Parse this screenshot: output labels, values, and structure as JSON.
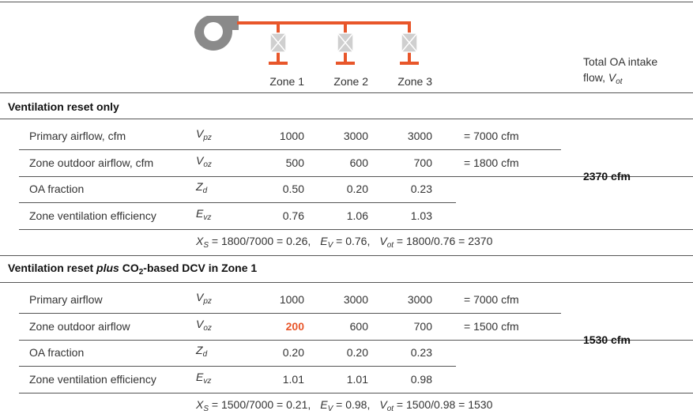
{
  "header": {
    "zones": [
      "Zone 1",
      "Zone 2",
      "Zone 3"
    ],
    "total_label": {
      "line1": "Total OA intake",
      "line2": "flow, ",
      "sym": {
        "base": "V",
        "sub": "ot"
      }
    }
  },
  "highlight_color": "#e8562a",
  "sections": [
    {
      "title": [
        {
          "text": "Ventilation reset only"
        }
      ],
      "rows": [
        {
          "label": "Primary airflow, cfm",
          "sym": {
            "base": "V",
            "sub": "pz"
          },
          "values": [
            "1000",
            "3000",
            "3000"
          ],
          "sum": "= 7000 cfm"
        },
        {
          "label": "Zone outdoor airflow, cfm",
          "sym": {
            "base": "V",
            "sub": "oz"
          },
          "values": [
            "500",
            "600",
            "700"
          ],
          "sum": "= 1800 cfm"
        },
        {
          "label": "OA fraction",
          "sym": {
            "base": "Z",
            "sub": "d"
          },
          "values": [
            "0.50",
            "0.20",
            "0.23"
          ]
        },
        {
          "label": "Zone ventilation efficiency",
          "sym": {
            "base": "E",
            "sub": "vz"
          },
          "values": [
            "0.76",
            "1.06",
            "1.03"
          ]
        }
      ],
      "total": "2370 cfm",
      "formula": [
        {
          "sym": {
            "base": "X",
            "sub": "S"
          },
          "expr": " = 1800/7000 = 0.26,"
        },
        {
          "sym": {
            "base": "E",
            "sub": "V"
          },
          "expr": " = 0.76,"
        },
        {
          "sym": {
            "base": "V",
            "sub": "ot"
          },
          "expr": " = 1800/0.76 = 2370"
        }
      ]
    },
    {
      "title": [
        {
          "text": "Ventilation reset "
        },
        {
          "text": "plus",
          "style": "italic"
        },
        {
          "text": " CO"
        },
        {
          "text": "2",
          "style": "sub"
        },
        {
          "text": "-based DCV in Zone 1"
        }
      ],
      "rows": [
        {
          "label": "Primary airflow",
          "sym": {
            "base": "V",
            "sub": "pz"
          },
          "values": [
            "1000",
            "3000",
            "3000"
          ],
          "sum": "= 7000 cfm"
        },
        {
          "label": "Zone outdoor airflow",
          "sym": {
            "base": "V",
            "sub": "oz"
          },
          "values": [
            "200",
            "600",
            "700"
          ],
          "sum": "= 1500 cfm",
          "highlight": [
            0
          ]
        },
        {
          "label": "OA fraction",
          "sym": {
            "base": "Z",
            "sub": "d"
          },
          "values": [
            "0.20",
            "0.20",
            "0.23"
          ]
        },
        {
          "label": "Zone ventilation efficiency",
          "sym": {
            "base": "E",
            "sub": "vz"
          },
          "values": [
            "1.01",
            "1.01",
            "0.98"
          ]
        }
      ],
      "total": "1530 cfm",
      "formula": [
        {
          "sym": {
            "base": "X",
            "sub": "S"
          },
          "expr": " = 1500/7000 = 0.21,"
        },
        {
          "sym": {
            "base": "E",
            "sub": "V"
          },
          "expr": " = 0.98,"
        },
        {
          "sym": {
            "base": "V",
            "sub": "ot"
          },
          "expr": " = 1500/0.98 = 1530"
        }
      ]
    }
  ]
}
